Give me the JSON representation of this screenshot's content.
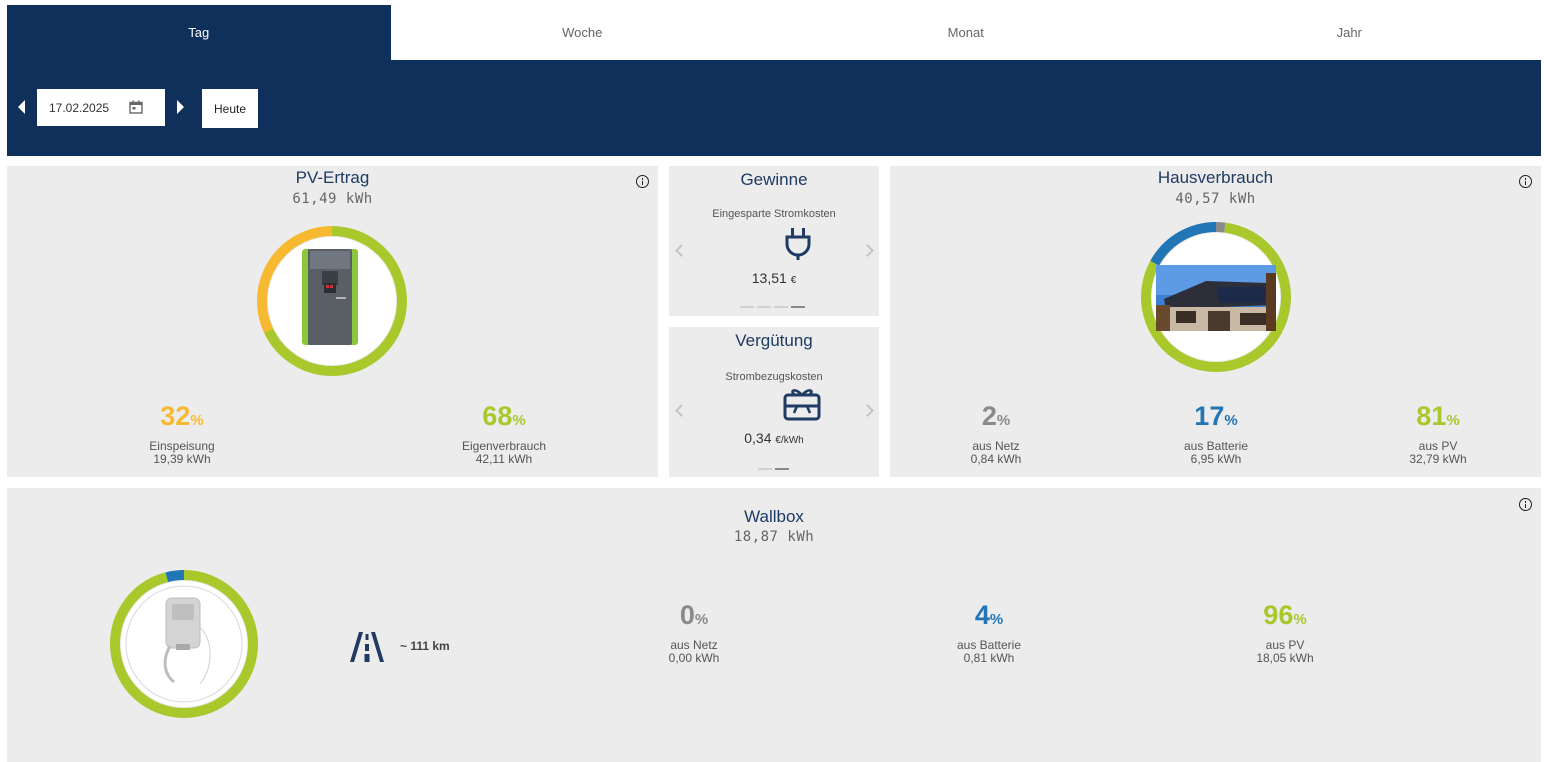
{
  "tabs": [
    {
      "label": "Tag",
      "active": true
    },
    {
      "label": "Woche",
      "active": false
    },
    {
      "label": "Monat",
      "active": false
    },
    {
      "label": "Jahr",
      "active": false
    }
  ],
  "datebar": {
    "date": "17.02.2025",
    "today_label": "Heute"
  },
  "pv": {
    "title": "PV-Ertrag",
    "total": "61,49 kWh",
    "einspeisung": {
      "pct": "32",
      "unit": "%",
      "label": "Einspeisung",
      "value": "19,39 kWh"
    },
    "eigenverbrauch": {
      "pct": "68",
      "unit": "%",
      "label": "Eigenverbrauch",
      "value": "42,11 kWh"
    }
  },
  "gewinne": {
    "title": "Gewinne",
    "subtitle": "Eingesparte Stromkosten",
    "amount": "13,51",
    "unit": "€"
  },
  "verguetung": {
    "title": "Vergütung",
    "subtitle": "Strombezugskosten",
    "amount": "0,34",
    "unit": "€/kWh"
  },
  "haus": {
    "title": "Hausverbrauch",
    "total": "40,57 kWh",
    "netz": {
      "pct": "2",
      "unit": "%",
      "label": "aus Netz",
      "value": "0,84 kWh"
    },
    "batterie": {
      "pct": "17",
      "unit": "%",
      "label": "aus Batterie",
      "value": "6,95 kWh"
    },
    "pv": {
      "pct": "81",
      "unit": "%",
      "label": "aus PV",
      "value": "32,79 kWh"
    }
  },
  "wallbox": {
    "title": "Wallbox",
    "total": "18,87 kWh",
    "range": "~ 111 km",
    "netz": {
      "pct": "0",
      "unit": "%",
      "label": "aus Netz",
      "value": "0,00 kWh"
    },
    "batterie": {
      "pct": "4",
      "unit": "%",
      "label": "aus Batterie",
      "value": "0,81 kWh"
    },
    "pv": {
      "pct": "96",
      "unit": "%",
      "label": "aus PV",
      "value": "18,05 kWh"
    }
  },
  "colors": {
    "navy": "#10305c",
    "title": "#1f3a63",
    "green": "#a9c82c",
    "yellow": "#f7b92f",
    "blue": "#2376b5",
    "grey": "#8a8a8a",
    "card": "#ebeceb"
  },
  "icons": [
    "calendar-icon",
    "plug-icon",
    "gift-card-icon",
    "road-icon",
    "info-icon"
  ]
}
